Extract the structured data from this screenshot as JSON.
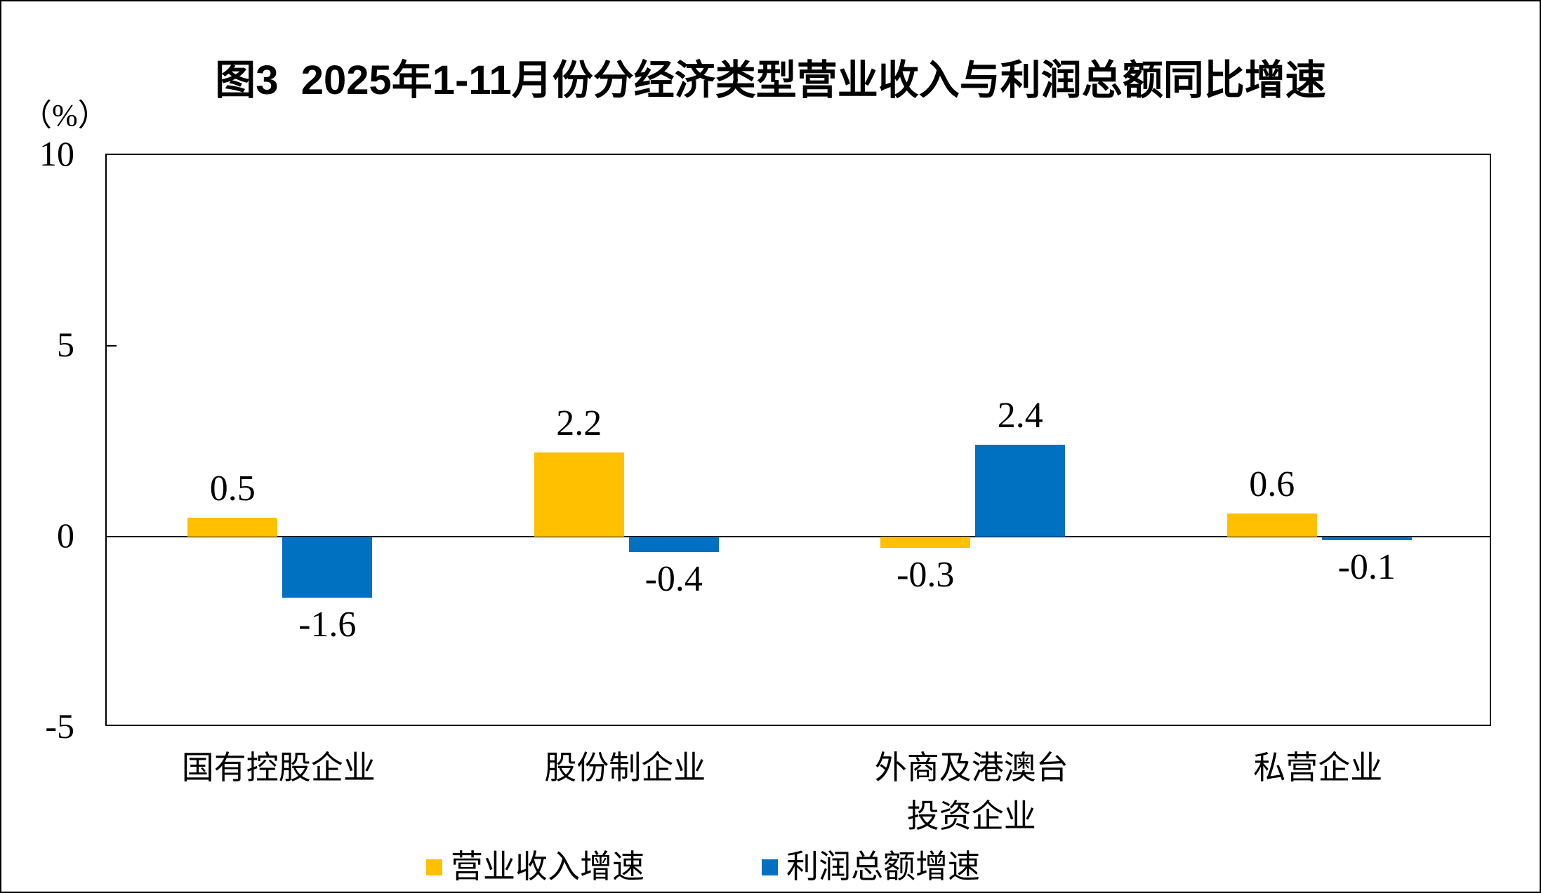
{
  "chart_data": {
    "type": "bar",
    "title": "图3  2025年1-11月份分经济类型营业收入与利润总额同比增速",
    "ylabel": "（%）",
    "categories": [
      "国有控股企业",
      "股份制企业",
      "外商及港澳台\n投资企业",
      "私营企业"
    ],
    "series": [
      {
        "name": "营业收入增速",
        "color": "#FFC000",
        "values": [
          0.5,
          2.2,
          -0.3,
          0.6
        ]
      },
      {
        "name": "利润总额增速",
        "color": "#0070C0",
        "values": [
          -1.6,
          -0.4,
          2.4,
          -0.1
        ]
      }
    ],
    "ylim": [
      -5,
      10
    ],
    "yticks": [
      10,
      5,
      0,
      -5
    ],
    "grid": false,
    "legend_position": "bottom",
    "value_labels_decimals": 1
  }
}
